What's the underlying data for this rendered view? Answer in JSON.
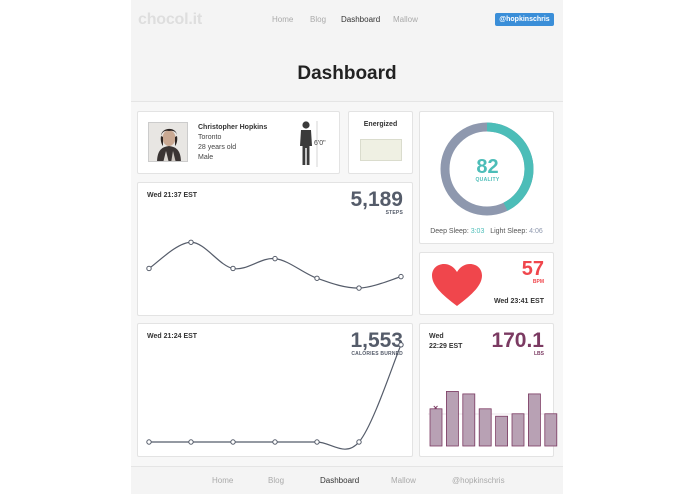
{
  "header": {
    "logo": "chocol.it",
    "nav": [
      {
        "label": "Home",
        "active": false
      },
      {
        "label": "Blog",
        "active": false
      },
      {
        "label": "Dashboard",
        "active": true
      },
      {
        "label": "Mallow",
        "active": false
      }
    ],
    "user_button": "@hopkinschris",
    "title": "Dashboard"
  },
  "profile": {
    "name": "Christopher Hopkins",
    "city": "Toronto",
    "age": "28 years old",
    "gender": "Male",
    "height": "6'0\"",
    "icons": {
      "photo": "avatar",
      "figure": "person-silhouette-icon"
    }
  },
  "mood": {
    "label": "Energized",
    "swatch_color": "#eff0e3"
  },
  "steps": {
    "time": "Wed 21:37 EST",
    "value": "5,189",
    "unit": "STEPS",
    "chart_data": {
      "type": "line",
      "x": [
        0,
        1,
        2,
        3,
        4,
        5,
        6
      ],
      "series": [
        {
          "values": [
            46,
            62,
            46,
            52,
            40,
            34,
            41
          ]
        }
      ],
      "ylim": [
        20,
        75
      ],
      "color": "#555c6a"
    }
  },
  "calories": {
    "time": "Wed 21:24 EST",
    "value": "1,553",
    "unit": "CALORIES BURNED",
    "chart_data": {
      "type": "line",
      "x": [
        0,
        1,
        2,
        3,
        4,
        5,
        6
      ],
      "series": [
        {
          "values": [
            0,
            0,
            0,
            0,
            0,
            0,
            108
          ]
        }
      ],
      "ylim": [
        0,
        120
      ],
      "color": "#555c6a"
    }
  },
  "sleep": {
    "quality_value": "82",
    "quality_label": "QUALITY",
    "deep_label": "Deep Sleep:",
    "deep_value": "3:03",
    "light_label": "Light Sleep:",
    "light_value": "4:06",
    "colors": {
      "deep": "#4cbdb8",
      "light": "#8e98ae"
    },
    "chart_data": {
      "type": "pie",
      "categories": [
        "Deep Sleep",
        "Light Sleep"
      ],
      "values": [
        3.05,
        4.1
      ]
    }
  },
  "heart": {
    "value": "57",
    "unit": "BPM",
    "time": "Wed 23:41 EST",
    "color": "#f0464c",
    "icon": "heart-icon"
  },
  "weight": {
    "day": "Wed",
    "time": "22:29 EST",
    "value": "170.1",
    "unit": "LBS",
    "color": "#7b3a62",
    "bar_fill": "#b8a1b4",
    "marker": "×",
    "chart_data": {
      "type": "bar",
      "categories": [
        "1",
        "2",
        "3",
        "4",
        "5",
        "6",
        "7",
        "8"
      ],
      "values": [
        30,
        44,
        42,
        30,
        24,
        26,
        42,
        26
      ],
      "ylim": [
        0,
        50
      ]
    }
  },
  "footer": {
    "nav": [
      {
        "label": "Home",
        "active": false
      },
      {
        "label": "Blog",
        "active": false
      },
      {
        "label": "Dashboard",
        "active": true
      },
      {
        "label": "Mallow",
        "active": false
      },
      {
        "label": "@hopkinschris",
        "active": false
      }
    ]
  }
}
